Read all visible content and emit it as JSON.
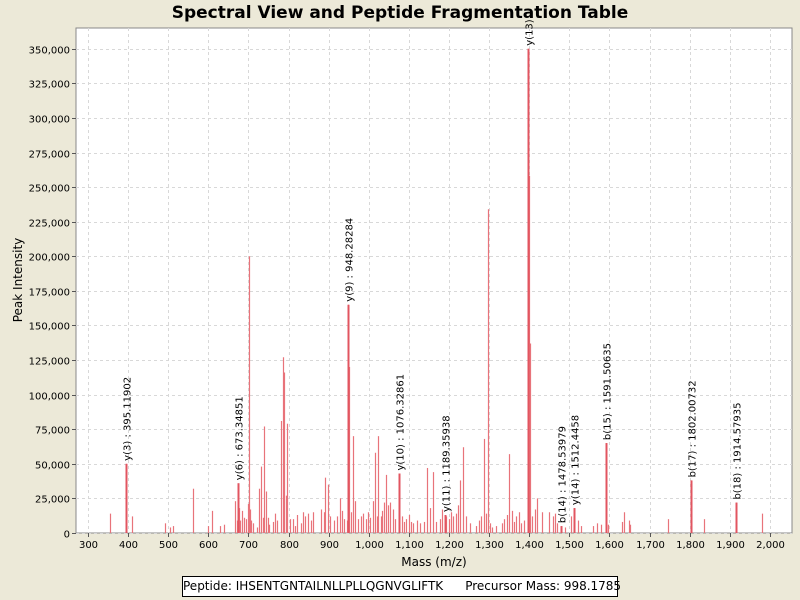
{
  "chart_data": {
    "type": "bar",
    "title": "Spectral View and Peptide Fragmentation Table",
    "xlabel": "Mass (m/z)",
    "ylabel": "Peak Intensity",
    "xlim": [
      270,
      2055
    ],
    "ylim": [
      0,
      365000
    ],
    "xticks": [
      300,
      400,
      500,
      600,
      700,
      800,
      900,
      1000,
      1100,
      1200,
      1300,
      1400,
      1500,
      1600,
      1700,
      1800,
      1900,
      2000
    ],
    "xtick_labels": [
      "300",
      "400",
      "500",
      "600",
      "700",
      "800",
      "900",
      "1,000",
      "1,100",
      "1,200",
      "1,300",
      "1,400",
      "1,500",
      "1,600",
      "1,700",
      "1,800",
      "1,900",
      "2,000"
    ],
    "yticks": [
      0,
      25000,
      50000,
      75000,
      100000,
      125000,
      150000,
      175000,
      200000,
      225000,
      250000,
      275000,
      300000,
      325000,
      350000
    ],
    "ytick_labels": [
      "0",
      "25,000",
      "50,000",
      "75,000",
      "100,000",
      "125,000",
      "150,000",
      "175,000",
      "200,000",
      "225,000",
      "250,000",
      "275,000",
      "300,000",
      "325,000",
      "350,000"
    ],
    "grid": true,
    "series": [
      {
        "name": "Peaks",
        "color": "#e8737a",
        "points": [
          [
            355,
            14000
          ],
          [
            395.1,
            50000
          ],
          [
            410,
            12000
          ],
          [
            492,
            7000
          ],
          [
            504,
            4000
          ],
          [
            512,
            5000
          ],
          [
            562,
            32000
          ],
          [
            598,
            5000
          ],
          [
            610,
            16000
          ],
          [
            628,
            5000
          ],
          [
            640,
            6000
          ],
          [
            667,
            23000
          ],
          [
            672,
            9000
          ],
          [
            677,
            18000
          ],
          [
            680,
            9000
          ],
          [
            683,
            16000
          ],
          [
            688,
            11000
          ],
          [
            693,
            10000
          ],
          [
            698,
            21000
          ],
          [
            701,
            200000
          ],
          [
            704,
            17000
          ],
          [
            707,
            9000
          ],
          [
            712,
            7000
          ],
          [
            720,
            4000
          ],
          [
            726,
            32000
          ],
          [
            730,
            48000
          ],
          [
            735,
            11000
          ],
          [
            739,
            77000
          ],
          [
            744,
            30000
          ],
          [
            748,
            11000
          ],
          [
            752,
            6000
          ],
          [
            762,
            8000
          ],
          [
            766,
            14000
          ],
          [
            772,
            9000
          ],
          [
            780,
            81000
          ],
          [
            786,
            127000
          ],
          [
            789,
            116000
          ],
          [
            793,
            27000
          ],
          [
            797,
            79000
          ],
          [
            803,
            10000
          ],
          [
            810,
            10000
          ],
          [
            816,
            5000
          ],
          [
            822,
            13000
          ],
          [
            830,
            7000
          ],
          [
            836,
            15000
          ],
          [
            842,
            12000
          ],
          [
            848,
            14000
          ],
          [
            856,
            9000
          ],
          [
            862,
            15000
          ],
          [
            880,
            17000
          ],
          [
            888,
            15000
          ],
          [
            892,
            40000
          ],
          [
            898,
            35000
          ],
          [
            904,
            12000
          ],
          [
            912,
            9000
          ],
          [
            920,
            12000
          ],
          [
            928,
            25000
          ],
          [
            934,
            16000
          ],
          [
            939,
            10000
          ],
          [
            945,
            9000
          ],
          [
            948.3,
            165000
          ],
          [
            950,
            120000
          ],
          [
            956,
            15000
          ],
          [
            960,
            70000
          ],
          [
            965,
            23000
          ],
          [
            972,
            10000
          ],
          [
            980,
            12000
          ],
          [
            986,
            14000
          ],
          [
            992,
            10000
          ],
          [
            998,
            15000
          ],
          [
            1004,
            11000
          ],
          [
            1010,
            23000
          ],
          [
            1016,
            58000
          ],
          [
            1020,
            12000
          ],
          [
            1024,
            70000
          ],
          [
            1030,
            12000
          ],
          [
            1034,
            16000
          ],
          [
            1038,
            22000
          ],
          [
            1044,
            42000
          ],
          [
            1048,
            20000
          ],
          [
            1054,
            22000
          ],
          [
            1060,
            17000
          ],
          [
            1066,
            10000
          ],
          [
            1076.3,
            43000
          ],
          [
            1082,
            12000
          ],
          [
            1088,
            8000
          ],
          [
            1093,
            10000
          ],
          [
            1099,
            13000
          ],
          [
            1105,
            8000
          ],
          [
            1111,
            7000
          ],
          [
            1119,
            9000
          ],
          [
            1127,
            7000
          ],
          [
            1138,
            8000
          ],
          [
            1145,
            47000
          ],
          [
            1152,
            18000
          ],
          [
            1160,
            44000
          ],
          [
            1168,
            8000
          ],
          [
            1177,
            10000
          ],
          [
            1183,
            17000
          ],
          [
            1189.4,
            13000
          ],
          [
            1193,
            12000
          ],
          [
            1200,
            10000
          ],
          [
            1206,
            15000
          ],
          [
            1211,
            12000
          ],
          [
            1217,
            14000
          ],
          [
            1223,
            20000
          ],
          [
            1228,
            38000
          ],
          [
            1236,
            62000
          ],
          [
            1242,
            12000
          ],
          [
            1252,
            7000
          ],
          [
            1268,
            5000
          ],
          [
            1275,
            9000
          ],
          [
            1280,
            12000
          ],
          [
            1286,
            68000
          ],
          [
            1292,
            14000
          ],
          [
            1297,
            234000
          ],
          [
            1302,
            7000
          ],
          [
            1308,
            4000
          ],
          [
            1318,
            5000
          ],
          [
            1332,
            7000
          ],
          [
            1338,
            10000
          ],
          [
            1344,
            13000
          ],
          [
            1350,
            57000
          ],
          [
            1356,
            16000
          ],
          [
            1362,
            8000
          ],
          [
            1368,
            12000
          ],
          [
            1374,
            15000
          ],
          [
            1380,
            7000
          ],
          [
            1388,
            9000
          ],
          [
            1398,
            350000
          ],
          [
            1400,
            258000
          ],
          [
            1403,
            137000
          ],
          [
            1408,
            12000
          ],
          [
            1414,
            17000
          ],
          [
            1420,
            25000
          ],
          [
            1432,
            15000
          ],
          [
            1448,
            15000
          ],
          [
            1458,
            12000
          ],
          [
            1464,
            14000
          ],
          [
            1470,
            7000
          ],
          [
            1478.5,
            5000
          ],
          [
            1488,
            4000
          ],
          [
            1504,
            12000
          ],
          [
            1512.4,
            18000
          ],
          [
            1522,
            9000
          ],
          [
            1530,
            5000
          ],
          [
            1558,
            5000
          ],
          [
            1570,
            7000
          ],
          [
            1580,
            6000
          ],
          [
            1591.5,
            65000
          ],
          [
            1596,
            6000
          ],
          [
            1630,
            8000
          ],
          [
            1636,
            15000
          ],
          [
            1648,
            9000
          ],
          [
            1652,
            6000
          ],
          [
            1745,
            10000
          ],
          [
            1802,
            38000
          ],
          [
            1836,
            10000
          ],
          [
            1914.6,
            22000
          ],
          [
            1980,
            14000
          ]
        ]
      }
    ],
    "annotations": [
      {
        "x": 395.1,
        "y": 50000,
        "text": "y(3) : 395.11902"
      },
      {
        "x": 673.35,
        "y": 36000,
        "text": "y(6) : 673.34851"
      },
      {
        "x": 948.3,
        "y": 165000,
        "text": "y(9) : 948.28284"
      },
      {
        "x": 1076.3,
        "y": 43000,
        "text": "y(10) : 1076.32861"
      },
      {
        "x": 1189.4,
        "y": 13000,
        "text": "y(11) : 1189.35938"
      },
      {
        "x": 1398,
        "y": 350000,
        "text": "y(13)"
      },
      {
        "x": 1478.5,
        "y": 5000,
        "text": "b(14) : 1478.53979"
      },
      {
        "x": 1512.4,
        "y": 18000,
        "text": "y(14) : 1512.4458"
      },
      {
        "x": 1591.5,
        "y": 65000,
        "text": "b(15) : 1591.50635"
      },
      {
        "x": 1802,
        "y": 38000,
        "text": "b(17) : 1802.00732"
      },
      {
        "x": 1914.6,
        "y": 22000,
        "text": "b(18) : 1914.57935"
      }
    ]
  },
  "footer": {
    "peptide_label": "Peptide: IHSENTGNTAILNLLPLLQGNVGLIFTK",
    "precursor_label": "Precursor Mass: 998.1785"
  },
  "colors": {
    "background": "#ece9d8",
    "plot_background": "#ffffff",
    "grid": "#d8d8d8",
    "peak": "#e8737a",
    "annotation_marker": "#e25560",
    "text": "#000000"
  }
}
